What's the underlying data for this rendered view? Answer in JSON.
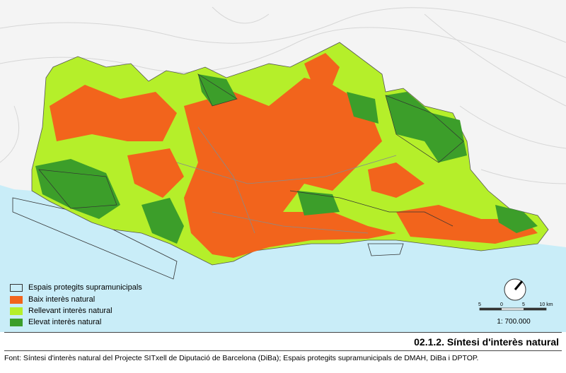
{
  "legend": {
    "items": [
      "Espais protegits supramunicipals",
      "Baix interès natural",
      "Rellevant interès natural",
      "Elevat interès natural"
    ]
  },
  "scale": {
    "ticks": [
      "5",
      "0",
      "5",
      "10 km"
    ],
    "ratio": "1: 700.000"
  },
  "title": "02.1.2. Síntesi d'interès natural",
  "source": "Font: Síntesi d'interès natural del Projecte SITxell de Diputació de Barcelona (DiBa); Espais protegits supramunicipals de DMAH, DiBa i DPTOP."
}
